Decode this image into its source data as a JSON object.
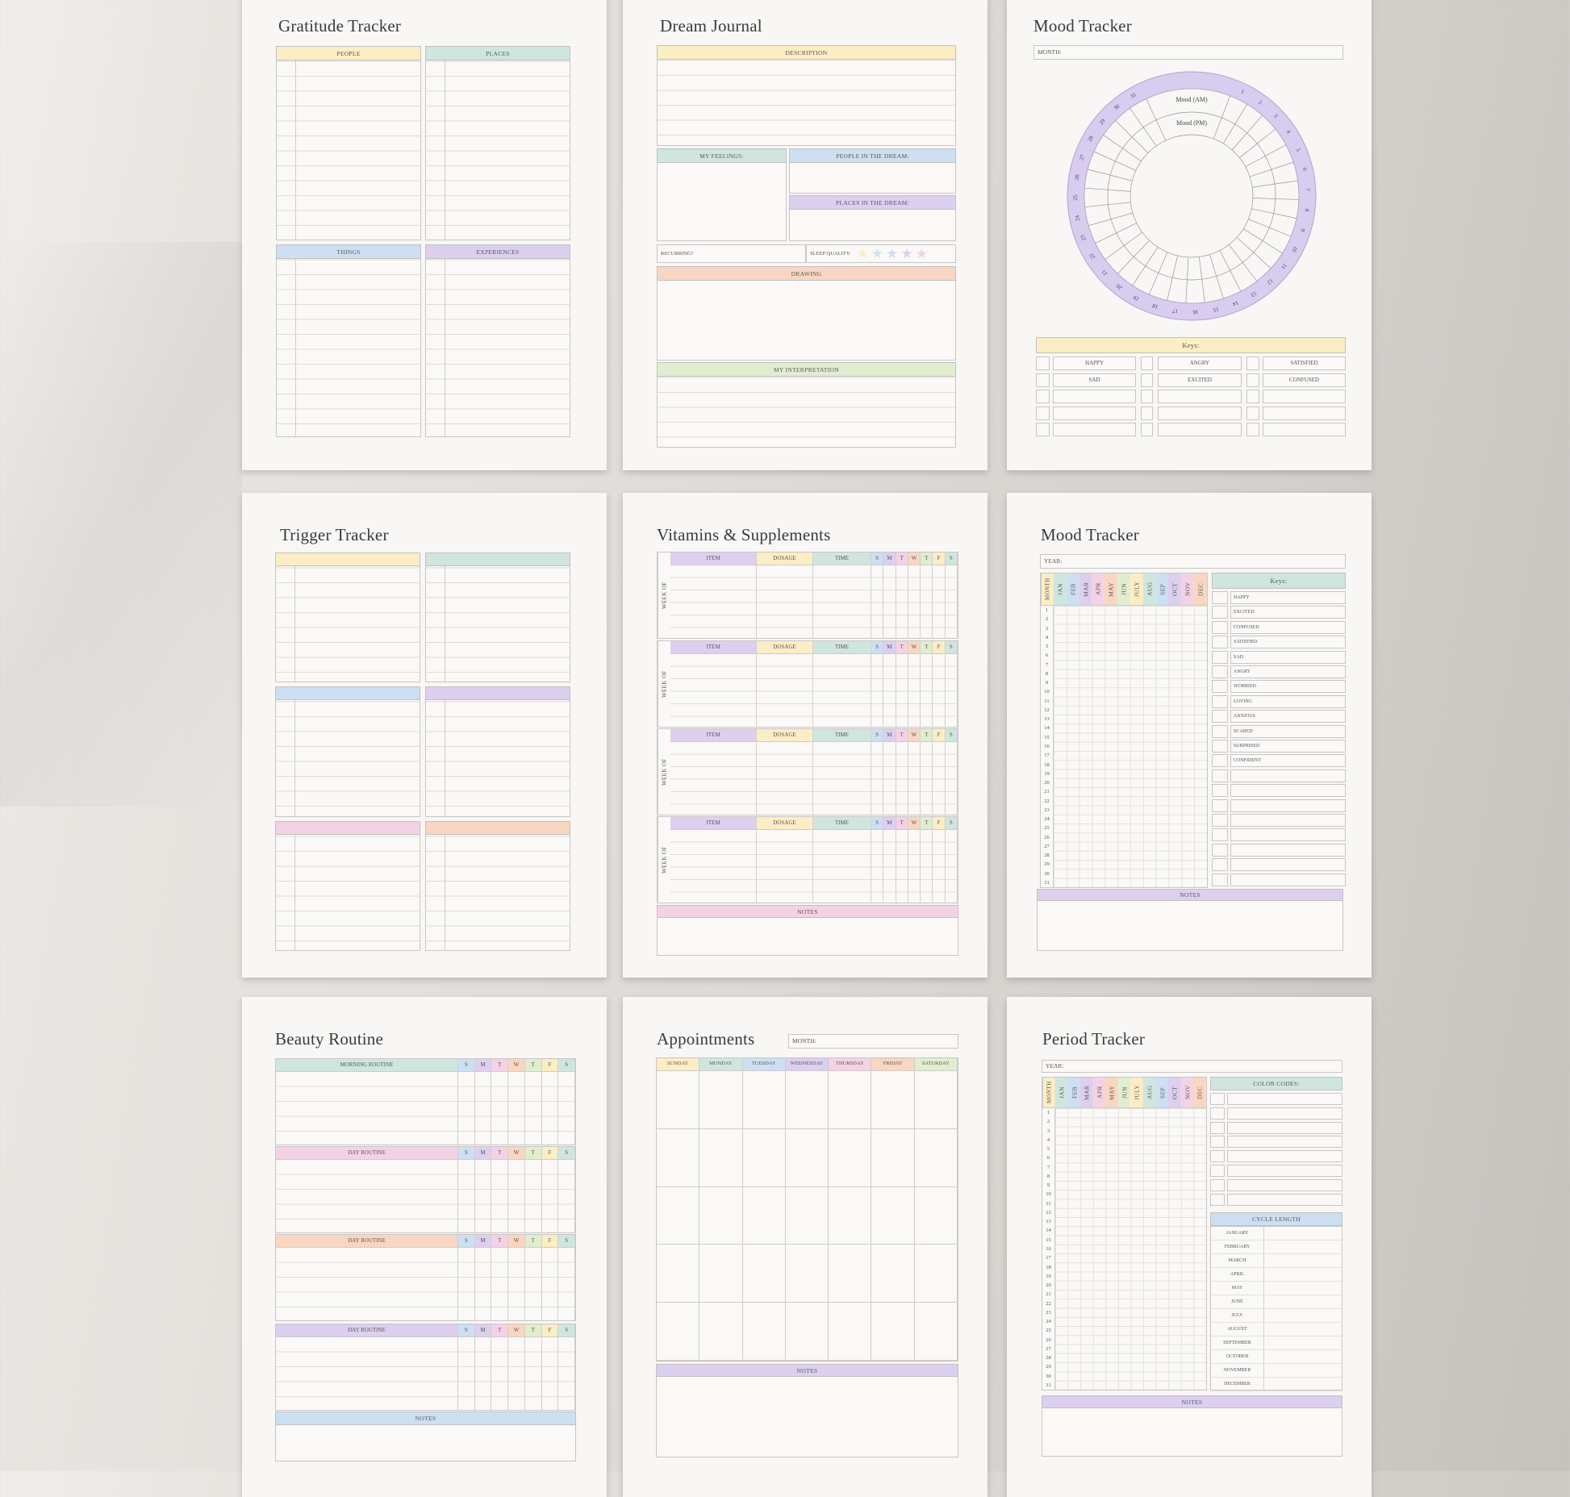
{
  "colors": {
    "yellow": "#fbedc4",
    "teal": "#cfe6df",
    "blue": "#cddff2",
    "lavender": "#dccff0",
    "pink": "#f4d2e5",
    "peach": "#f8d6c1",
    "green": "#e0edcf",
    "ring": "#d8ccef"
  },
  "gratitude": {
    "title": "Gratitude Tracker",
    "sections": [
      "PEOPLE",
      "PLACES",
      "THINGS",
      "EXPERIENCES"
    ]
  },
  "dream": {
    "title": "Dream Journal",
    "description": "DESCRIPTION",
    "feelings": "MY FEELINGS:",
    "people": "PEOPLE IN THE DREAM:",
    "places": "PLACES IN THE DREAM:",
    "recurring": "RECURRING?",
    "sleep_quality": "SLEEP QUALITY:",
    "stars": 5,
    "drawing": "DRAWING",
    "interpretation": "MY INTERPRETATION"
  },
  "mood_wheel": {
    "title": "Mood Tracker",
    "month_label": "MONTH:",
    "ring_am": "Mood (AM)",
    "ring_pm": "Mood (PM)",
    "days": 31,
    "keys_label": "Keys:",
    "keys": [
      "HAPPY",
      "ANGRY",
      "SATISFIED",
      "SAD",
      "EXCITED",
      "CONFUSED"
    ]
  },
  "trigger": {
    "title": "Trigger Tracker"
  },
  "vitamins": {
    "title": "Vitamins  & Supplements",
    "week_of": "WEEK OF",
    "columns": [
      "ITEM",
      "DOSAGE",
      "TIME"
    ],
    "days": [
      "S",
      "M",
      "T",
      "W",
      "T",
      "F",
      "S"
    ],
    "notes": "NOTES"
  },
  "mood_year": {
    "title": "Mood Tracker",
    "year_label": "YEAR:",
    "month_header": "MONTH",
    "months": [
      "JAN",
      "FEB",
      "MAR",
      "APR",
      "MAY",
      "JUN",
      "JULY",
      "AUG",
      "SEP",
      "OCT",
      "NOV",
      "DEC"
    ],
    "days": 31,
    "keys_label": "Keys:",
    "keys": [
      "HAPPY",
      "EXCITED",
      "CONFUSED",
      "SATISFIED",
      "SAD",
      "ANGRY",
      "WORRIED",
      "LOVING",
      "ANXIOUS",
      "SCARED",
      "SURPRISED",
      "CONFIDENT"
    ],
    "notes": "NOTES"
  },
  "beauty": {
    "title": "Beauty Routine",
    "routines": [
      "MORNING ROUTINE",
      "DAY ROUTINE",
      "DAY ROUTINE",
      "DAY ROUTINE"
    ],
    "days": [
      "S",
      "M",
      "T",
      "W",
      "T",
      "F",
      "S"
    ],
    "notes": "NOTES"
  },
  "appointments": {
    "title": "Appointments",
    "month_label": "MONTH:",
    "weekdays": [
      "SUNDAY",
      "MONDAY",
      "TUESDAY",
      "WEDNESDAY",
      "THURSDAY",
      "FRIDAY",
      "SATURDAY"
    ],
    "notes": "NOTES"
  },
  "period": {
    "title": "Period Tracker",
    "year_label": "YEAR:",
    "month_header": "MONTH",
    "months": [
      "JAN",
      "FEB",
      "MAR",
      "APR",
      "MAY",
      "JUN",
      "JULY",
      "AUG",
      "SEP",
      "OCT",
      "NOV",
      "DEC"
    ],
    "days": 31,
    "color_codes": "COLOR CODES:",
    "cycle_length": "CYCLE LENGTH",
    "cycle_months": [
      "JANUARY",
      "FEBRUARY",
      "MARCH",
      "APRIL",
      "MAY",
      "JUNE",
      "JULY",
      "AUGUST",
      "SEPTEMBER",
      "OCTOBER",
      "NOVEMBER",
      "DECEMBER"
    ],
    "notes": "NOTES"
  }
}
